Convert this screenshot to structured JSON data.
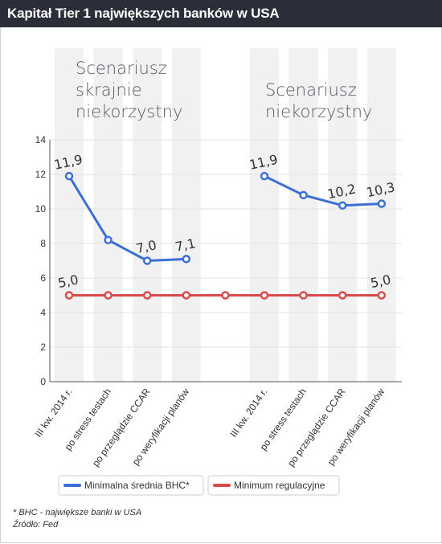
{
  "header": {
    "title": "Kapitał Tier 1 największych banków w USA"
  },
  "chart_data": {
    "type": "line",
    "title": "Kapitał Tier 1 największych banków w USA",
    "categories": [
      "III kw. 2014 r.",
      "po stress testach",
      "po przeglądzie CCAR",
      "po weryfikacji planów",
      "",
      "III kw. 2014 r.",
      "po stress testach",
      "po przeglądzie CCAR",
      "po weryfikacji planów"
    ],
    "ylim": [
      0,
      14
    ],
    "yticks": [
      0,
      2,
      4,
      6,
      8,
      10,
      12,
      14
    ],
    "grid": true,
    "legend_position": "bottom",
    "scenarios": [
      {
        "label_lines": [
          "Scenariusz",
          "skrajnie",
          "niekorzystny"
        ]
      },
      {
        "label_lines": [
          "Scenariusz",
          "niekorzystny"
        ]
      }
    ],
    "series": [
      {
        "name": "Minimalna średnia BHC*",
        "color": "#3a6fd8",
        "segments": [
          {
            "x": [
              0,
              1,
              2,
              3
            ],
            "values": [
              11.9,
              8.2,
              7.0,
              7.1
            ]
          },
          {
            "x": [
              5,
              6,
              7,
              8
            ],
            "values": [
              11.9,
              10.8,
              10.2,
              10.3
            ]
          }
        ],
        "data_labels": [
          {
            "x": 0,
            "value": 11.9,
            "text": "11,9"
          },
          {
            "x": 2,
            "value": 7.0,
            "text": "7,0"
          },
          {
            "x": 3,
            "value": 7.1,
            "text": "7,1"
          },
          {
            "x": 5,
            "value": 11.9,
            "text": "11,9"
          },
          {
            "x": 7,
            "value": 10.2,
            "text": "10,2"
          },
          {
            "x": 8,
            "value": 10.3,
            "text": "10,3"
          }
        ]
      },
      {
        "name": "Minimum regulacyjne",
        "color": "#d94a4a",
        "segments": [
          {
            "x": [
              0,
              1,
              2,
              3,
              4,
              5,
              6,
              7,
              8
            ],
            "values": [
              5,
              5,
              5,
              5,
              5,
              5,
              5,
              5,
              5
            ]
          }
        ],
        "data_labels": [
          {
            "x": 0,
            "value": 5.0,
            "text": "5,0"
          },
          {
            "x": 8,
            "value": 5.0,
            "text": "5,0"
          }
        ]
      }
    ]
  },
  "footnotes": {
    "bhc": "* BHC - największe banki w USA",
    "source": "Źródło: Fed"
  },
  "colors": {
    "header_bg": "#2b2e38",
    "column_band": "#f1f1f1",
    "grid": "#e3e3e3",
    "axis": "#555555",
    "text": "#333333"
  }
}
